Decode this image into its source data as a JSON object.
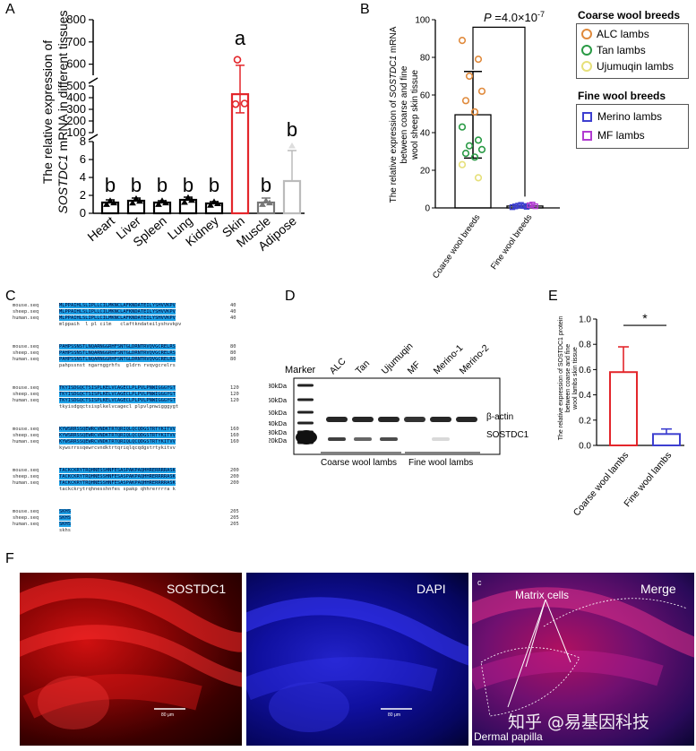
{
  "panel_labels": {
    "a": "A",
    "b": "B",
    "c": "C",
    "d": "D",
    "e": "E",
    "f": "F"
  },
  "chart_data": [
    {
      "id": "A",
      "type": "bar",
      "ylabel_line1": "The relative expression  of",
      "ylabel_gene": "SOSTDC1",
      "ylabel_line2_rest": " mRNA in different tissues",
      "categories": [
        "Heart",
        "Liver",
        "Spleen",
        "Lung",
        "Kidney",
        "Skin",
        "Muscle",
        "Adipose"
      ],
      "values": [
        1.2,
        1.4,
        1.2,
        1.5,
        1.1,
        430,
        1.2,
        3.6
      ],
      "error_up": [
        0.3,
        0.3,
        0.2,
        0.3,
        0.2,
        165,
        0.5,
        3.4
      ],
      "letters": [
        "b",
        "b",
        "b",
        "b",
        "b",
        "a",
        "b",
        "b"
      ],
      "colors": [
        "#000000",
        "#000000",
        "#000000",
        "#000000",
        "#000000",
        "#e3262b",
        "#777777",
        "#bbbbbb"
      ],
      "yticks_low": [
        "0",
        "2",
        "4",
        "6",
        "8"
      ],
      "yticks_mid": [
        "100",
        "200",
        "300",
        "400",
        "500"
      ],
      "yticks_high": [
        "600",
        "700",
        "800"
      ],
      "ylim_segments": [
        [
          0,
          8
        ],
        [
          100,
          500
        ],
        [
          550,
          800
        ]
      ]
    },
    {
      "id": "B",
      "type": "bar",
      "ylabel_line1_pre": "The relative expression  of ",
      "ylabel_gene": "SOSTDC1",
      "ylabel_line1_post": " mRNA",
      "ylabel_line2": "between coarse and fine",
      "ylabel_line3": "wool sheep skin tissue",
      "categories": [
        "Coarse wool breeds",
        "Fine wool breeds"
      ],
      "values": [
        49.5,
        1.0
      ],
      "error": [
        23,
        0.8
      ],
      "yticks": [
        "0",
        "20",
        "40",
        "60",
        "80",
        "100"
      ],
      "ylim": [
        0,
        100
      ],
      "p_prefix": "P",
      "p_value": " =4.0×10",
      "p_exp": "-7",
      "points_coarse": {
        "ALC lambs": [
          89,
          79,
          70,
          62,
          57,
          51
        ],
        "Tan lambs": [
          43,
          36,
          33,
          31,
          29,
          27
        ],
        "Ujumuqin lambs": [
          23,
          16
        ]
      },
      "points_fine": {
        "Merino lambs": [
          0.4,
          0.8,
          1.2,
          1.6,
          1.0,
          0.6
        ],
        "MF lambs": [
          1.4,
          1.8,
          0.9
        ]
      },
      "legend_coarse_title": "Coarse wool breeds",
      "legend_coarse": [
        {
          "label": "ALC lambs",
          "color": "#e08a3c"
        },
        {
          "label": "Tan lambs",
          "color": "#2a9a45"
        },
        {
          "label": "Ujumuqin lambs",
          "color": "#e6e07a"
        }
      ],
      "legend_fine_title": "Fine wool breeds",
      "legend_fine": [
        {
          "label": "Merino lambs",
          "color": "#3d3fd0"
        },
        {
          "label": "MF lambs",
          "color": "#b13bd1"
        }
      ]
    },
    {
      "id": "E",
      "type": "bar",
      "ylabel_line1": "The relative expression of SOSTDC1 protein",
      "ylabel_line2": "between coarse and fine",
      "ylabel_line3": "wool lambs skin tissue",
      "categories": [
        "Coarse wool lambs",
        "Fine wool lambs"
      ],
      "values": [
        0.58,
        0.09
      ],
      "error": [
        0.2,
        0.04
      ],
      "colors": [
        "#e3262b",
        "#3d3fd0"
      ],
      "yticks": [
        "0.0",
        "0.2",
        "0.4",
        "0.6",
        "0.8",
        "1.0"
      ],
      "ylim": [
        0,
        1.0
      ],
      "sig": "*"
    }
  ],
  "alignment": {
    "names": [
      "mouse.seq",
      "sheep.seq",
      "human.seq"
    ],
    "blocks": [
      {
        "seq": "MLPPAIHLSLIPLLCILMKNCLAFKNDATEILYSHVVKPV",
        "cons": "mlppaih  l pl cilm   claftkndateilyshvvkpv",
        "num": "40"
      },
      {
        "seq": "PAHPSSNSTLNQARNGGRHFSNTGLDRNTRVQVGCRELRS",
        "cons": "pahpssnst ngarnggrhfs  gldrn rvqvgcrelrs",
        "num": "80"
      },
      {
        "seq": "TKYISDGQCTSISPLKELVCAGECLPLPVLPNWIGGGYGT",
        "cons": "tkyisdgqctsisplkelvcagecl plpvlpnwigggygt",
        "num": "120"
      },
      {
        "seq": "KYWSRRSSQEWRCVNDKTRTQRIQLQCQDGSTRTYKITVV",
        "cons": "kywsrrssqewrcvndktrtqriqlqcqdgstrtykitvv",
        "num": "160"
      },
      {
        "seq": "TACKCKRYTRQHNESSHNFESASPAKPAQHHRERRRRASK",
        "cons": "tackckrytrqhnesshnfes spakp qhhrerrrra k",
        "num": "200"
      },
      {
        "seq": "SKHS",
        "cons": "skhs",
        "num": "205"
      }
    ]
  },
  "blot": {
    "marker_label": "Marker",
    "lanes": [
      "ALC",
      "Tan",
      "Ujumuqin",
      "MF",
      "Merino-1",
      "Merino-2"
    ],
    "ladder": [
      "80kDa",
      "60kDa",
      "50kDa",
      "40kDa",
      "30kDa",
      "20kDa"
    ],
    "band_labels": [
      "β-actin",
      "SOSTDC1"
    ],
    "group_coarse": "Coarse wool lambs",
    "group_fine": "Fine wool lambs",
    "actin_intensity": [
      0.85,
      0.85,
      0.85,
      0.8,
      0.85,
      0.85
    ],
    "sostdc1_intensity": [
      0.75,
      0.6,
      0.7,
      0.0,
      0.15,
      0.0
    ]
  },
  "micro": {
    "labels": [
      "SOSTDC1",
      "DAPI",
      "Merge"
    ],
    "corner_label": "c",
    "annotations": [
      "Matrix cells",
      "Dermal papilla"
    ],
    "scale": "80 μm",
    "watermark": "知乎 @易基因科技"
  }
}
